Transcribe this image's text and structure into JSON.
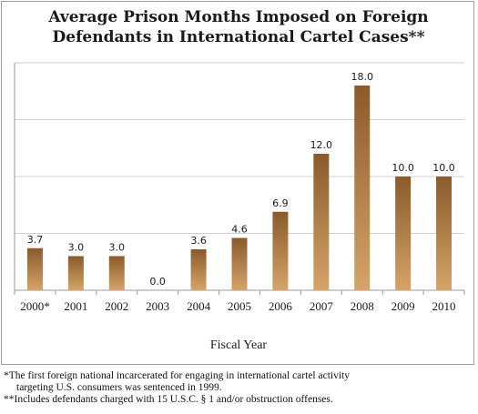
{
  "chart_data": {
    "type": "bar",
    "title_lines": [
      "Average Prison Months Imposed on Foreign",
      "Defendants in International Cartel Cases**"
    ],
    "xlabel": "Fiscal Year",
    "ylabel": "",
    "categories": [
      "2000*",
      "2001",
      "2002",
      "2003",
      "2004",
      "2005",
      "2006",
      "2007",
      "2008",
      "2009",
      "2010"
    ],
    "values": [
      3.7,
      3.0,
      3.0,
      0.0,
      3.6,
      4.6,
      6.9,
      12.0,
      18.0,
      10.0,
      10.0
    ],
    "data_labels": [
      "3.7",
      "3.0",
      "3.0",
      "0.0",
      "3.6",
      "4.6",
      "6.9",
      "12.0",
      "18.0",
      "10.0",
      "10.0"
    ],
    "ylim": [
      0,
      20
    ],
    "grid": true,
    "legend": "none",
    "colors": {
      "bar_top": "#8a5a2b",
      "bar_bottom": "#d6a468",
      "grid": "#d0d0d0",
      "axis": "#9a9a9a"
    }
  },
  "footnotes": {
    "line1": "*The first foreign national incarcerated for engaging in international cartel activity",
    "line2": "targeting U.S. consumers was sentenced in 1999.",
    "line3": "**Includes defendants charged with 15 U.S.C. § 1 and/or obstruction offenses."
  }
}
